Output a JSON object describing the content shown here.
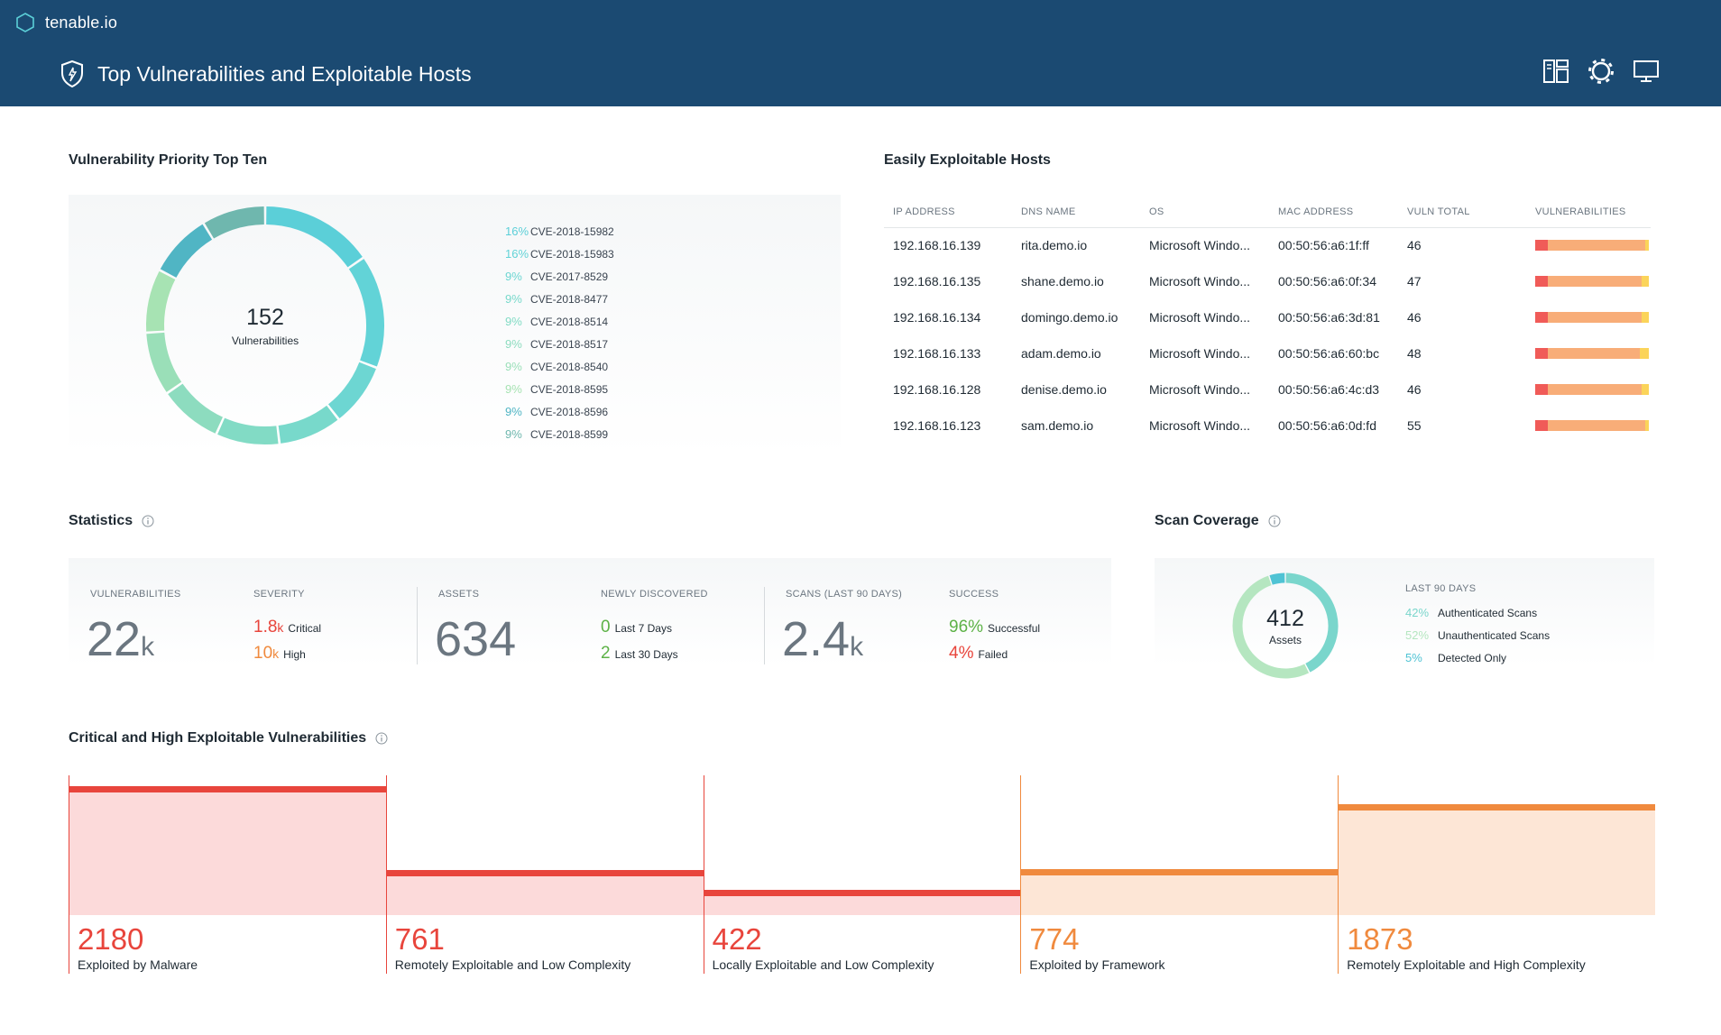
{
  "app": {
    "name": "tenable.io",
    "page_title": "Top Vulnerabilities and Exploitable Hosts"
  },
  "header_icons": [
    "dashboard-layout-icon",
    "gear-icon",
    "monitor-icon"
  ],
  "colors": {
    "header_bg": "#1b4a72",
    "critical": "#e8453c",
    "high": "#f08a3e",
    "green": "#5db247",
    "teal": "#5bcfd8",
    "light_green": "#9adcb4"
  },
  "vuln_priority": {
    "title": "Vulnerability Priority Top Ten",
    "total": "152",
    "total_label": "Vulnerabilities",
    "items": [
      {
        "pct": "16%",
        "cve": "CVE-2018-15982",
        "color": "#5bcfd8",
        "value": 16
      },
      {
        "pct": "16%",
        "cve": "CVE-2018-15983",
        "color": "#62d3d7",
        "value": 16
      },
      {
        "pct": "9%",
        "cve": "CVE-2017-8529",
        "color": "#6dd6d2",
        "value": 9
      },
      {
        "pct": "9%",
        "cve": "CVE-2018-8477",
        "color": "#78d9cb",
        "value": 9
      },
      {
        "pct": "9%",
        "cve": "CVE-2018-8514",
        "color": "#82dbc5",
        "value": 9
      },
      {
        "pct": "9%",
        "cve": "CVE-2018-8517",
        "color": "#8ddcbf",
        "value": 9
      },
      {
        "pct": "9%",
        "cve": "CVE-2018-8540",
        "color": "#9adfb8",
        "value": 9
      },
      {
        "pct": "9%",
        "cve": "CVE-2018-8595",
        "color": "#a7e3b3",
        "value": 9
      },
      {
        "pct": "9%",
        "cve": "CVE-2018-8596",
        "color": "#50b5c4",
        "value": 9
      },
      {
        "pct": "9%",
        "cve": "CVE-2018-8599",
        "color": "#6fb7ae",
        "value": 9
      }
    ]
  },
  "hosts": {
    "title": "Easily Exploitable Hosts",
    "columns": [
      "IP ADDRESS",
      "DNS NAME",
      "OS",
      "MAC ADDRESS",
      "VULN TOTAL",
      "VULNERABILITIES"
    ],
    "rows": [
      {
        "ip": "192.168.16.139",
        "dns": "rita.demo.io",
        "os": "Microsoft Windo...",
        "mac": "00:50:56:a6:1f:ff",
        "total": "46",
        "critical": 11,
        "high": 86,
        "medium": 3
      },
      {
        "ip": "192.168.16.135",
        "dns": "shane.demo.io",
        "os": "Microsoft Windo...",
        "mac": "00:50:56:a6:0f:34",
        "total": "47",
        "critical": 11,
        "high": 83,
        "medium": 6
      },
      {
        "ip": "192.168.16.134",
        "dns": "domingo.demo.io",
        "os": "Microsoft Windo...",
        "mac": "00:50:56:a6:3d:81",
        "total": "46",
        "critical": 11,
        "high": 83,
        "medium": 6
      },
      {
        "ip": "192.168.16.133",
        "dns": "adam.demo.io",
        "os": "Microsoft Windo...",
        "mac": "00:50:56:a6:60:bc",
        "total": "48",
        "critical": 11,
        "high": 81,
        "medium": 8
      },
      {
        "ip": "192.168.16.128",
        "dns": "denise.demo.io",
        "os": "Microsoft Windo...",
        "mac": "00:50:56:a6:4c:d3",
        "total": "46",
        "critical": 11,
        "high": 83,
        "medium": 6
      },
      {
        "ip": "192.168.16.123",
        "dns": "sam.demo.io",
        "os": "Microsoft Windo...",
        "mac": "00:50:56:a6:0d:fd",
        "total": "55",
        "critical": 11,
        "high": 86,
        "medium": 3
      }
    ]
  },
  "statistics": {
    "title": "Statistics",
    "vulnerabilities": {
      "label": "VULNERABILITIES",
      "value": "22",
      "unit": "k"
    },
    "severity": {
      "label": "SEVERITY",
      "critical_value": "1.8",
      "critical_unit": "k",
      "critical_label": "Critical",
      "high_value": "10",
      "high_unit": "k",
      "high_label": "High"
    },
    "assets": {
      "label": "ASSETS",
      "value": "634"
    },
    "newly_discovered": {
      "label": "NEWLY DISCOVERED",
      "last7_value": "0",
      "last7_label": "Last 7 Days",
      "last30_value": "2",
      "last30_label": "Last 30 Days"
    },
    "scans": {
      "label": "SCANS (LAST 90 DAYS)",
      "value": "2.4",
      "unit": "k"
    },
    "success": {
      "label": "SUCCESS",
      "success_value": "96%",
      "success_label": "Successful",
      "failed_value": "4%",
      "failed_label": "Failed"
    }
  },
  "scan_coverage": {
    "title": "Scan Coverage",
    "total": "412",
    "total_label": "Assets",
    "period_label": "LAST 90 DAYS",
    "items": [
      {
        "pct": "42%",
        "label": "Authenticated Scans",
        "color": "#7ad6cc",
        "value": 42
      },
      {
        "pct": "52%",
        "label": "Unauthenticated Scans",
        "color": "#b5e6c0",
        "value": 52
      },
      {
        "pct": "5%",
        "label": "Detected Only",
        "color": "#4fc3d4",
        "value": 5
      }
    ]
  },
  "exploitable": {
    "title": "Critical and High Exploitable Vulnerabilities",
    "max": 2180,
    "items": [
      {
        "value": "2180",
        "num": 2180,
        "label": "Exploited by Malware",
        "cap": "#e8453c",
        "fill": "#fcdada",
        "text": "#e8453c"
      },
      {
        "value": "761",
        "num": 761,
        "label": "Remotely Exploitable and Low Complexity",
        "cap": "#e8453c",
        "fill": "#fcdada",
        "text": "#e8453c"
      },
      {
        "value": "422",
        "num": 422,
        "label": "Locally Exploitable and Low Complexity",
        "cap": "#e8453c",
        "fill": "#fcdada",
        "text": "#e8453c"
      },
      {
        "value": "774",
        "num": 774,
        "label": "Exploited by Framework",
        "cap": "#f08a3e",
        "fill": "#fde6d6",
        "text": "#f08a3e"
      },
      {
        "value": "1873",
        "num": 1873,
        "label": "Remotely Exploitable and High Complexity",
        "cap": "#f08a3e",
        "fill": "#fde6d6",
        "text": "#f08a3e"
      }
    ]
  }
}
